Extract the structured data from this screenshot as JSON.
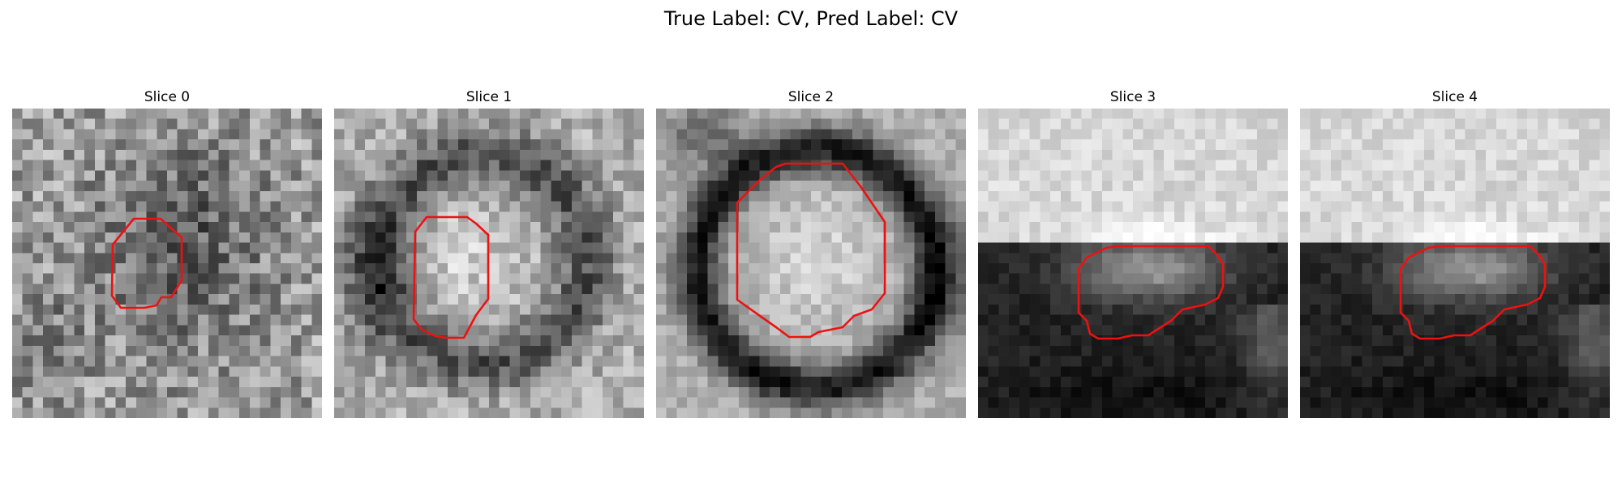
{
  "figure": {
    "title": "True Label: CV, Pred Label: CV",
    "contour_color": "#ee1111"
  },
  "slices": [
    {
      "label": "Slice 0"
    },
    {
      "label": "Slice 1"
    },
    {
      "label": "Slice 2"
    },
    {
      "label": "Slice 3"
    },
    {
      "label": "Slice 4"
    }
  ]
}
